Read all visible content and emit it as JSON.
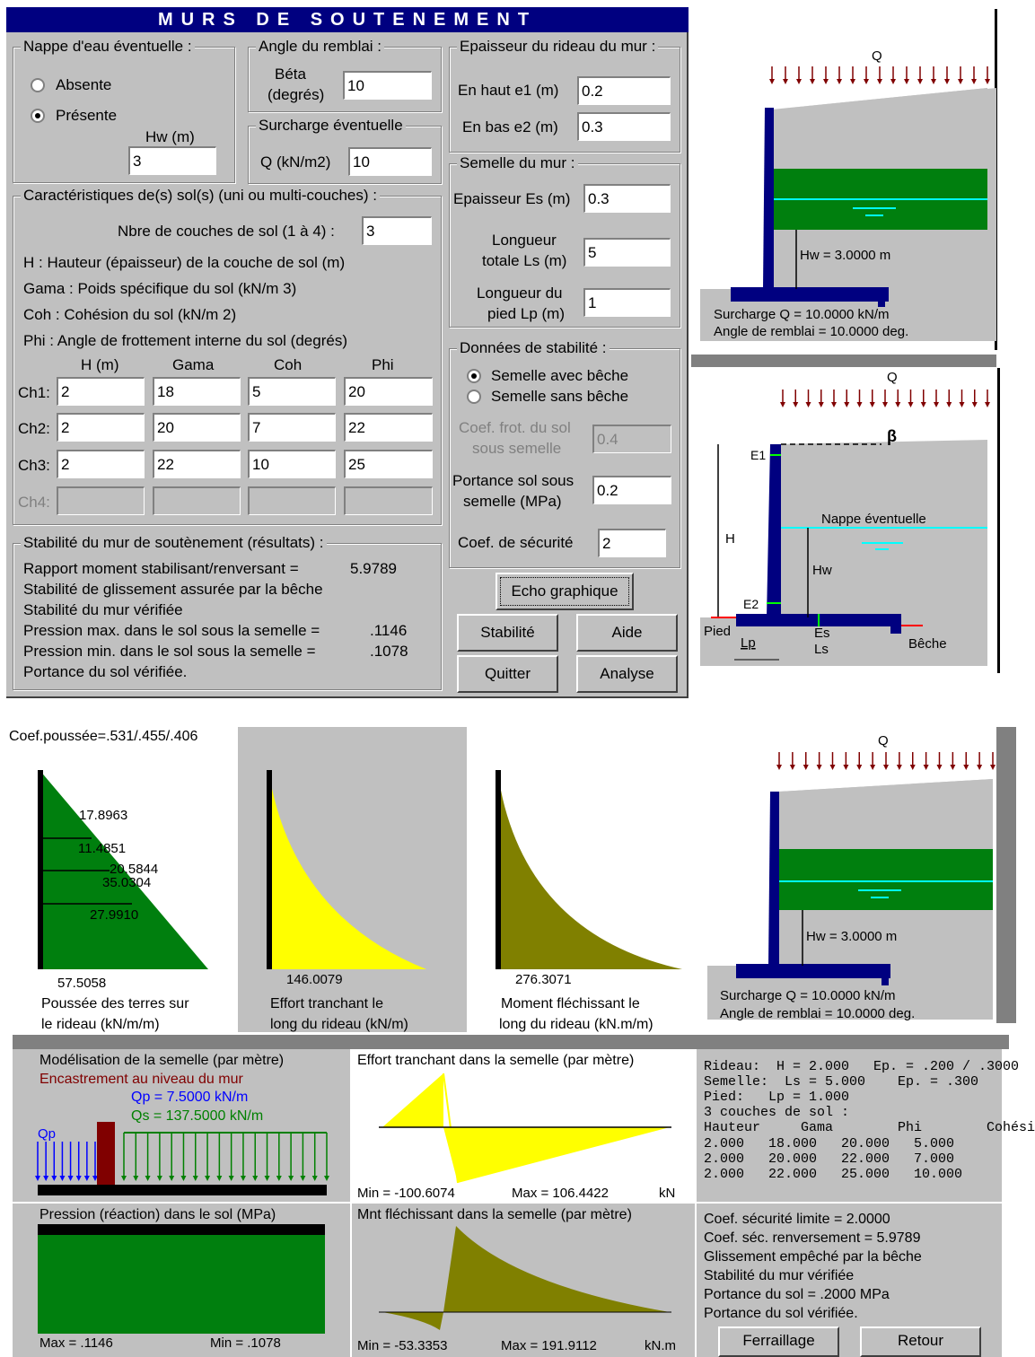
{
  "title": "MURS DE SOUTENEMENT",
  "nappe": {
    "legend": "Nappe d'eau éventuelle :",
    "absente": "Absente",
    "presente": "Présente",
    "hw_label": "Hw (m)",
    "hw_value": "3"
  },
  "angle": {
    "legend": "Angle du remblai :",
    "beta_label1": "Béta",
    "beta_label2": "(degrés)",
    "beta_value": "10"
  },
  "surcharge": {
    "legend": "Surcharge éventuelle",
    "q_label": "Q (kN/m2)",
    "q_value": "10"
  },
  "epaisseur": {
    "legend": "Epaisseur du rideau du mur :",
    "haut_label": "En haut e1 (m)",
    "haut_value": "0.2",
    "bas_label": "En bas e2 (m)",
    "bas_value": "0.3"
  },
  "semelle": {
    "legend": "Semelle du mur :",
    "es_label": "Epaisseur Es (m)",
    "es_value": "0.3",
    "ls_label1": "Longueur",
    "ls_label2": "totale Ls (m)",
    "ls_value": "5",
    "lp_label1": "Longueur du",
    "lp_label2": "pied Lp (m)",
    "lp_value": "1"
  },
  "sols": {
    "legend": "Caractéristiques de(s) sol(s)  (uni ou multi-couches) :",
    "nbre_label": "Nbre de couches de sol (1 à 4) :",
    "nbre_value": "3",
    "desc": [
      "H : Hauteur (épaisseur) de la couche de sol (m)",
      "Gama : Poids spécifique du sol (kN/m 3)",
      "Coh : Cohésion du sol (kN/m 2)",
      "Phi : Angle de frottement interne du sol (degrés)"
    ],
    "headers": [
      "H (m)",
      "Gama",
      "Coh",
      "Phi"
    ],
    "rows": [
      {
        "label": "Ch1:",
        "h": "2",
        "gama": "18",
        "coh": "5",
        "phi": "20"
      },
      {
        "label": "Ch2:",
        "h": "2",
        "gama": "20",
        "coh": "7",
        "phi": "22"
      },
      {
        "label": "Ch3:",
        "h": "2",
        "gama": "22",
        "coh": "10",
        "phi": "25"
      },
      {
        "label": "Ch4:",
        "h": "",
        "gama": "",
        "coh": "",
        "phi": ""
      }
    ]
  },
  "stabilite": {
    "legend": "Données de stabilité :",
    "avec": "Semelle avec bêche",
    "sans": "Semelle sans bêche",
    "coef_frot1": "Coef. frot. du sol",
    "coef_frot2": "sous semelle",
    "coef_frot_value": "0.4",
    "portance1": "Portance sol sous",
    "portance2": "semelle (MPa)",
    "portance_value": "0.2",
    "coef_sec_label": "Coef. de sécurité",
    "coef_sec_value": "2"
  },
  "resultats": {
    "legend": "Stabilité du mur de soutènement (résultats) :",
    "l1": "Rapport moment stabilisant/renversant =",
    "v1": "5.9789",
    "l2": "Stabilité de glissement assurée par la bêche",
    "l3": "Stabilité du mur vérifiée",
    "l4": "Pression max. dans le sol sous la semelle =",
    "v4": ".1146",
    "l5": "Pression min. dans le sol sous la semelle =",
    "v5": ".1078",
    "l6": "Portance du sol vérifiée."
  },
  "buttons": {
    "echo": "Echo graphique",
    "stabilite": "Stabilité",
    "aide": "Aide",
    "quitter": "Quitter",
    "analyse": "Analyse",
    "ferraillage": "Ferraillage",
    "retour": "Retour"
  },
  "diagram1": {
    "q": "Q",
    "hw": "Hw = 3.0000 m",
    "surcharge": "Surcharge Q = 10.0000 kN/m",
    "angle": "Angle de remblai = 10.0000 deg."
  },
  "diagram2": {
    "q": "Q",
    "beta": "β",
    "e1": "E1",
    "e2": "E2",
    "h": "H",
    "hw": "Hw",
    "nappe": "Nappe éventuelle",
    "pied": "Pied",
    "lp": "Lp",
    "es": "Es",
    "ls": "Ls",
    "beche": "Bêche"
  },
  "poussee": {
    "coef": "Coef.poussée=.531/.455/.406",
    "v1": "17.8963",
    "v2": "11.4851",
    "v3": "20.5844",
    "v4": "35.0304",
    "v5": "27.9910",
    "vmax": "57.5058",
    "cap1": "Poussée des terres sur",
    "cap2": "le rideau (kN/m/m)"
  },
  "tranchant": {
    "vmax": "146.0079",
    "cap1": "Effort tranchant le",
    "cap2": "long du rideau (kN/m)"
  },
  "moment": {
    "vmax": "276.3071",
    "cap1": "Moment fléchissant le",
    "cap2": "long du rideau (kN.m/m)"
  },
  "modelisation": {
    "title": "Modélisation de la semelle (par mètre)",
    "sub": "Encastrement au niveau du mur",
    "qp": "Qp = 7.5000 kN/m",
    "qs": "Qs = 137.5000 kN/m",
    "qp_short": "Qp"
  },
  "effort_semelle": {
    "title": "Effort tranchant dans la semelle (par mètre)",
    "min": "Min = -100.6074",
    "max": "Max = 106.4422",
    "unit": "kN"
  },
  "pression": {
    "title": "Pression (réaction) dans le sol (MPa)",
    "max": "Max = .1146",
    "min": "Min = .1078"
  },
  "mnt_semelle": {
    "title": "Mnt fléchissant dans la semelle (par mètre)",
    "min": "Min = -53.3353",
    "max": "Max = 191.9112",
    "unit": "kN.m"
  },
  "recap": {
    "lines": [
      "Rideau:  H = 2.000   Ep. = .200 / .3000",
      "Semelle:  Ls = 5.000    Ep. = .300",
      "Pied:   Lp = 1.000",
      "3 couches de sol :",
      "Hauteur     Gama        Phi        Cohési",
      "2.000   18.000   20.000   5.000",
      "2.000   20.000   22.000   7.000",
      "2.000   22.000   25.000   10.000"
    ],
    "final": [
      "Coef. sécurité limite = 2.0000",
      "Coef. séc. renversement = 5.9789",
      "Glissement empêché par la bêche",
      "Stabilité du mur vérifiée",
      "Portance du sol = .2000 MPa",
      "Portance du sol vérifiée."
    ]
  },
  "colors": {
    "navy": "#000080",
    "green": "#007f0e",
    "yellow": "#ffff00",
    "olive": "#808000",
    "gray": "#c0c0c0",
    "cyan": "#00ffff"
  }
}
